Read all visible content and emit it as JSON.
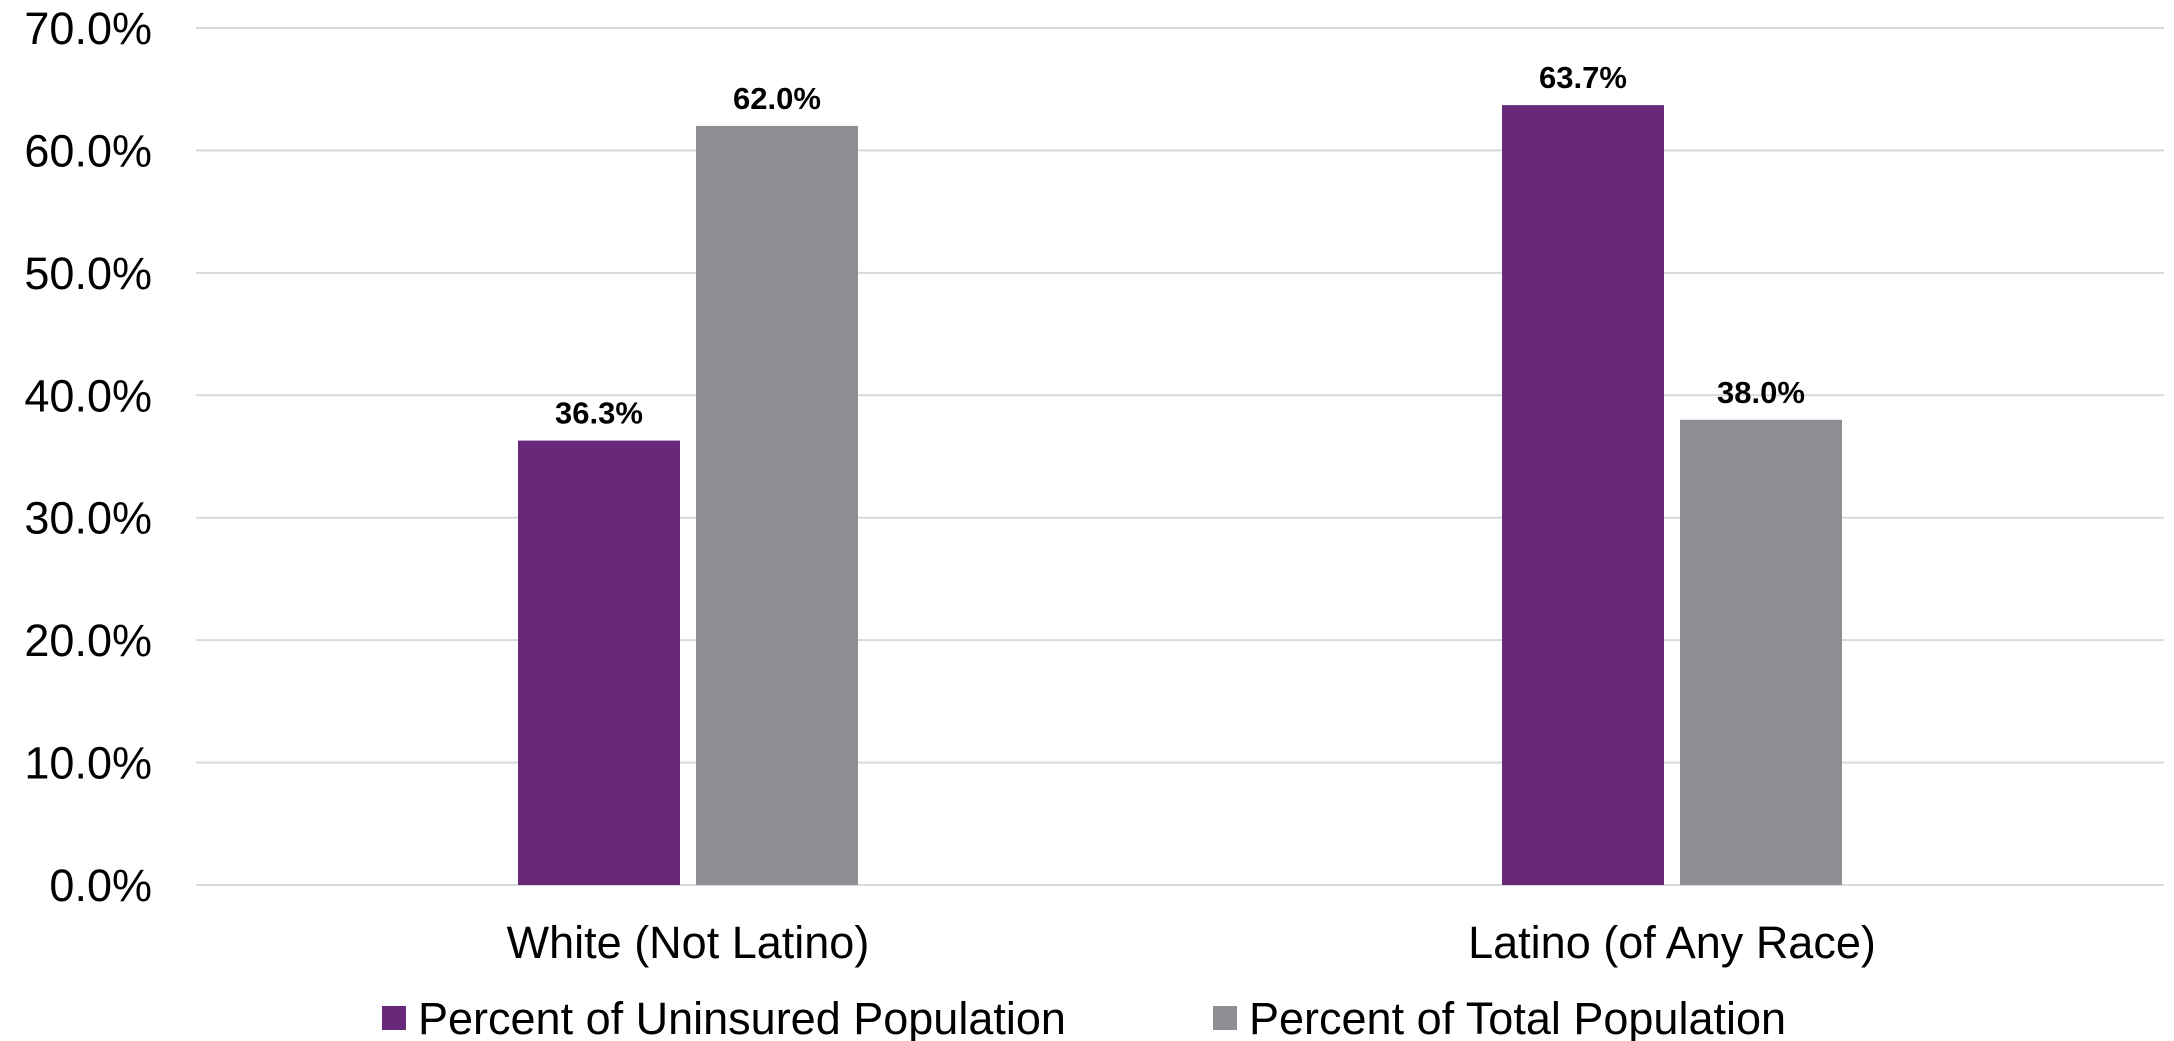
{
  "chart_data": {
    "type": "bar",
    "categories": [
      "White (Not Latino)",
      "Latino (of Any Race)"
    ],
    "series": [
      {
        "name": "Percent of Uninsured Population",
        "values": [
          36.3,
          63.7
        ],
        "labels": [
          "36.3%",
          "63.7%"
        ],
        "color": "#68297a"
      },
      {
        "name": "Percent of Total Population",
        "values": [
          62.0,
          38.0
        ],
        "labels": [
          "62.0%",
          "38.0%"
        ],
        "color": "#908e95"
      }
    ],
    "ylim": [
      0,
      70
    ],
    "yticks": [
      0,
      10,
      20,
      30,
      40,
      50,
      60,
      70
    ],
    "ytick_labels": [
      "0.0%",
      "10.0%",
      "20.0%",
      "30.0%",
      "40.0%",
      "50.0%",
      "60.0%",
      "70.0%"
    ],
    "grid": true,
    "legend_position": "bottom"
  }
}
